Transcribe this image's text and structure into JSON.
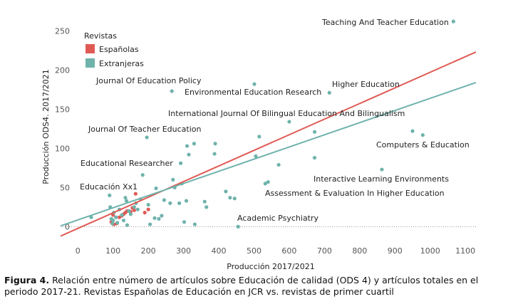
{
  "chart_data": {
    "type": "scatter",
    "xlabel": "Producción 2017/2021",
    "ylabel": "Producción ODS4. 2017/2021",
    "xlim": [
      -49,
      1130
    ],
    "ylim": [
      -16,
      263
    ],
    "xticks": [
      0,
      100,
      200,
      300,
      400,
      500,
      600,
      700,
      800,
      900,
      1000,
      1100
    ],
    "yticks": [
      0,
      50,
      100,
      150,
      200,
      250
    ],
    "hline": 0,
    "legend_title": "Revistas",
    "legend": "top-left",
    "series": [
      {
        "name": "Españolas",
        "color": "#e05a55",
        "x": [
          95,
          100,
          102,
          110,
          118,
          125,
          130,
          135,
          140,
          150,
          155,
          160,
          164,
          190,
          200
        ],
        "values": [
          6,
          15,
          3,
          4,
          12,
          14,
          16,
          18,
          20,
          19,
          24,
          21,
          42,
          18,
          22
        ],
        "fit": {
          "x": [
            -49,
            1130
          ],
          "values": [
            -12,
            223
          ]
        }
      },
      {
        "name": "Extranjeras",
        "color": "#6fb3ac",
        "x": [
          38,
          90,
          92,
          95,
          98,
          100,
          102,
          108,
          112,
          118,
          125,
          130,
          135,
          138,
          140,
          145,
          150,
          160,
          165,
          170,
          178,
          184,
          196,
          200,
          205,
          218,
          222,
          230,
          238,
          245,
          262,
          267,
          270,
          275,
          288,
          292,
          295,
          302,
          308,
          310,
          315,
          330,
          332,
          360,
          365,
          388,
          390,
          420,
          432,
          445,
          455,
          501,
          505,
          515,
          532,
          540,
          570,
          600,
          672,
          672,
          714,
          863,
          950,
          979,
          1066
        ],
        "values": [
          12,
          40,
          25,
          10,
          4,
          8,
          18,
          12,
          5,
          22,
          15,
          8,
          37,
          33,
          2,
          20,
          16,
          25,
          30,
          22,
          35,
          66,
          114,
          28,
          3,
          11,
          49,
          10,
          14,
          34,
          30,
          173,
          60,
          50,
          30,
          81,
          55,
          6,
          33,
          103,
          92,
          106,
          3,
          32,
          25,
          93,
          106,
          45,
          37,
          36,
          0,
          182,
          90,
          115,
          55,
          57,
          79,
          134,
          121,
          88,
          171,
          73,
          122,
          117,
          262
        ],
        "fit": {
          "x": [
            -49,
            1130
          ],
          "values": [
            1,
            184
          ]
        }
      }
    ],
    "annotations": [
      "Teaching And Teacher Education",
      "Journal Of Education Policy",
      "Environmental Education Research",
      "Higher Education",
      "International Journal Of Bilingual Education And Bilingualism",
      "Journal Of Teacher Education",
      "Computers & Education",
      "Educational Researcher",
      "Interactive Learning Environments",
      "Assessment & Evaluation In Higher Education",
      "Academic Psychiatry",
      "Educación Xx1"
    ]
  },
  "caption": {
    "label": "Figura 4.",
    "text": "Relación entre número de artículos sobre Educación de calidad (ODS 4) y artículos totales en el periodo 2017-21. Revistas Españolas de Educación en JCR vs. revistas de primer cuartil"
  }
}
